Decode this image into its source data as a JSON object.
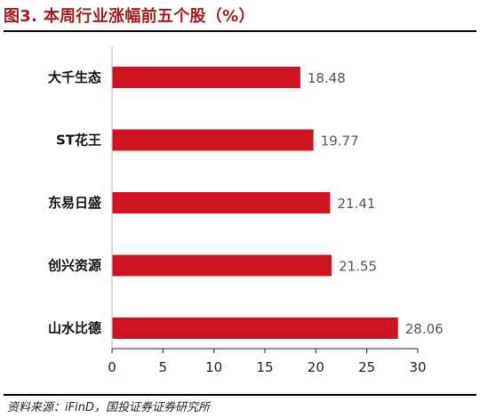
{
  "header": {
    "title": "图3. 本周行业涨幅前五个股（%）"
  },
  "footer": {
    "source": "资料来源：iFinD，国投证券证券研究所"
  },
  "chart_data": {
    "type": "bar",
    "orientation": "horizontal",
    "title": "图3. 本周行业涨幅前五个股（%）",
    "categories": [
      "大千生态",
      "ST花王",
      "东易日盛",
      "创兴资源",
      "山水比德"
    ],
    "values": [
      18.48,
      19.77,
      21.41,
      21.55,
      28.06
    ],
    "value_labels": [
      "18.48",
      "19.77",
      "21.41",
      "21.55",
      "28.06"
    ],
    "xlim": [
      0,
      30
    ],
    "xticks": [
      0,
      5,
      10,
      15,
      20,
      25,
      30
    ],
    "bar_color": "#d0141e",
    "grid": false,
    "legend": "none"
  }
}
